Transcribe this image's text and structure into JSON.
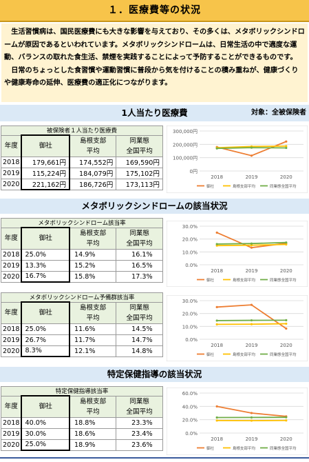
{
  "title": "１．医療費等の状況",
  "intro": {
    "p1": "生活習慣病は、国民医療費にも大きな影響を与えており、その多くは、メタボリックシンドロームが原因であるといわれています。メタボリックシンドロームは、日常生活の中で適度な運動、バランスの取れた食生活、禁煙を実践することによって予防することができるものです。",
    "p2": "日常のちょっとした食習慣や運動習慣に普段から気を付けることの積み重ねが、健康づくりや健康寿命の延伸、医療費の適正化につながります。"
  },
  "colors": {
    "own": "#ed7d31",
    "branch": "#ffc000",
    "industry": "#70ad47"
  },
  "legend": {
    "own": "御社",
    "branch": "島根支部平均",
    "industry": "同業態全国平均"
  },
  "sections": [
    {
      "heading": "1人当たり医療費",
      "target": "対象：全被保険者",
      "table": {
        "caption": "被保険者１人当たり医療費",
        "col_year": "年度",
        "col_own": "御社",
        "col_branch": [
          "島根支部",
          "平均"
        ],
        "col_industry": [
          "同業態",
          "全国平均"
        ],
        "rows": [
          {
            "year": "2018",
            "own": "179,661円",
            "branch": "174,552円",
            "industry": "169,590円"
          },
          {
            "year": "2019",
            "own": "115,224円",
            "branch": "184,079円",
            "industry": "175,102円"
          },
          {
            "year": "2020",
            "own": "221,162円",
            "branch": "186,726円",
            "industry": "173,113円"
          }
        ]
      },
      "chart_data": {
        "type": "line",
        "x": [
          "2018",
          "2019",
          "2020"
        ],
        "ylim": [
          0,
          300000
        ],
        "yticks": [
          "0円",
          "100,000円",
          "200,000円",
          "300,000円"
        ],
        "series": [
          {
            "name": "御社",
            "values": [
              179661,
              115224,
              221162
            ]
          },
          {
            "name": "島根支部平均",
            "values": [
              174552,
              184079,
              186726
            ]
          },
          {
            "name": "同業態全国平均",
            "values": [
              169590,
              175102,
              173113
            ]
          }
        ]
      }
    },
    {
      "heading": "メタボリックシンドロームの該当状況",
      "tables": [
        {
          "caption": "メタボリックシンドローム該当率",
          "col_year": "年度",
          "col_own": "御社",
          "col_branch": [
            "島根支部",
            "平均"
          ],
          "col_industry": [
            "同業態",
            "全国平均"
          ],
          "rows": [
            {
              "year": "2018",
              "own": "25.0%",
              "branch": "14.9%",
              "industry": "16.1%"
            },
            {
              "year": "2019",
              "own": "13.3%",
              "branch": "15.2%",
              "industry": "16.5%"
            },
            {
              "year": "2020",
              "own": "16.7%",
              "branch": "15.8%",
              "industry": "17.3%"
            }
          ],
          "chart_data": {
            "type": "line",
            "x": [
              "2018",
              "2019",
              "2020"
            ],
            "ylim": [
              0,
              30
            ],
            "yticks": [
              "0.0%",
              "10.0%",
              "20.0%",
              "30.0%"
            ],
            "series": [
              {
                "name": "御社",
                "values": [
                  25.0,
                  13.3,
                  16.7
                ]
              },
              {
                "name": "島根支部平均",
                "values": [
                  14.9,
                  15.2,
                  15.8
                ]
              },
              {
                "name": "同業態全国平均",
                "values": [
                  16.1,
                  16.5,
                  17.3
                ]
              }
            ]
          }
        },
        {
          "caption": "メタボリックシンドローム予備群該当率",
          "col_year": "年度",
          "col_own": "御社",
          "col_branch": [
            "島根支部",
            "平均"
          ],
          "col_industry": [
            "同業態",
            "全国平均"
          ],
          "rows": [
            {
              "year": "2018",
              "own": "25.0%",
              "branch": "11.6%",
              "industry": "14.5%"
            },
            {
              "year": "2019",
              "own": "26.7%",
              "branch": "11.7%",
              "industry": "14.7%"
            },
            {
              "year": "2020",
              "own": "8.3%",
              "branch": "12.1%",
              "industry": "14.8%"
            }
          ],
          "chart_data": {
            "type": "line",
            "x": [
              "2018",
              "2019",
              "2020"
            ],
            "ylim": [
              0,
              30
            ],
            "yticks": [
              "0.0%",
              "10.0%",
              "20.0%",
              "30.0%"
            ],
            "series": [
              {
                "name": "御社",
                "values": [
                  25.0,
                  26.7,
                  8.3
                ]
              },
              {
                "name": "島根支部平均",
                "values": [
                  11.6,
                  11.7,
                  12.1
                ]
              },
              {
                "name": "同業態全国平均",
                "values": [
                  14.5,
                  14.7,
                  14.8
                ]
              }
            ]
          }
        }
      ]
    },
    {
      "heading": "特定保健指導の該当状況",
      "table": {
        "caption": "特定保健指導該当率",
        "col_year": "年度",
        "col_own": "御社",
        "col_branch": [
          "島根支部",
          "平均"
        ],
        "col_industry": [
          "同業態",
          "全国平均"
        ],
        "rows": [
          {
            "year": "2018",
            "own": "40.0%",
            "branch": "18.8%",
            "industry": "23.3%"
          },
          {
            "year": "2019",
            "own": "30.0%",
            "branch": "18.6%",
            "industry": "23.4%"
          },
          {
            "year": "2020",
            "own": "25.0%",
            "branch": "18.9%",
            "industry": "23.6%"
          }
        ]
      },
      "chart_data": {
        "type": "line",
        "x": [
          "2018",
          "2019",
          "2020"
        ],
        "ylim": [
          0,
          60
        ],
        "yticks": [
          "0.0%",
          "20.0%",
          "40.0%",
          "60.0%"
        ],
        "series": [
          {
            "name": "御社",
            "values": [
              40.0,
              30.0,
              25.0
            ]
          },
          {
            "name": "島根支部平均",
            "values": [
              18.8,
              18.6,
              18.9
            ]
          },
          {
            "name": "同業態全国平均",
            "values": [
              23.3,
              23.4,
              23.6
            ]
          }
        ]
      }
    }
  ]
}
